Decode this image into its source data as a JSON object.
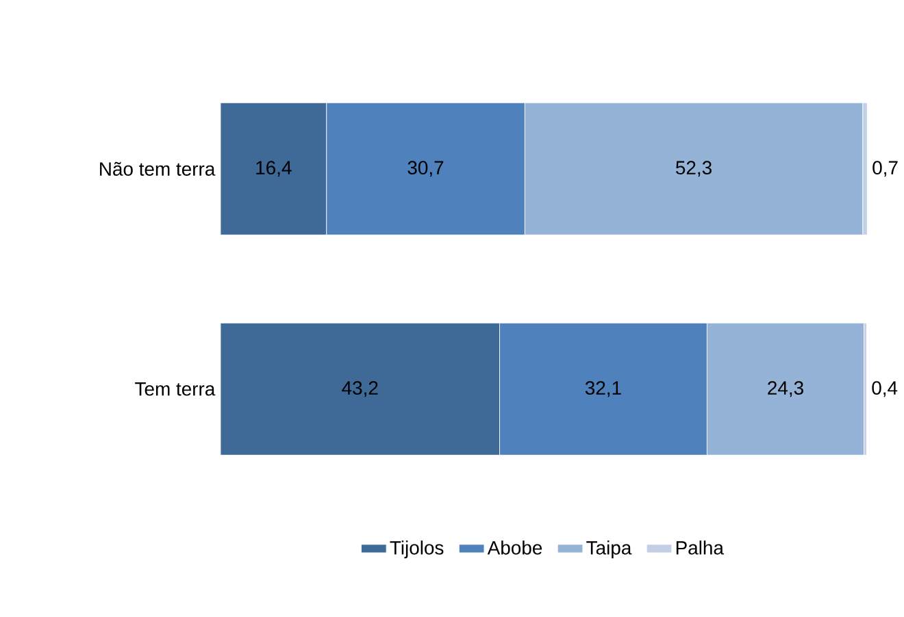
{
  "chart_data": {
    "type": "bar",
    "orientation": "horizontal",
    "stacked": true,
    "legend": "bottom",
    "categories": [
      "Não tem terra",
      "Tem terra"
    ],
    "series": [
      {
        "name": "Tijolos",
        "color": "#3f6a98",
        "values": [
          16.4,
          43.2
        ],
        "value_labels": [
          "16,4",
          "43,2"
        ]
      },
      {
        "name": "Abobe",
        "color": "#4f81bd",
        "values": [
          30.7,
          32.1
        ],
        "value_labels": [
          "30,7",
          "32,1"
        ]
      },
      {
        "name": "Taipa",
        "color": "#95b3d7",
        "values": [
          52.3,
          24.3
        ],
        "value_labels": [
          "52,3",
          "24,3"
        ]
      },
      {
        "name": "Palha",
        "color": "#c3cfe6",
        "values": [
          0.7,
          0.4
        ],
        "value_labels": [
          "0,7",
          "0,4"
        ]
      }
    ]
  }
}
